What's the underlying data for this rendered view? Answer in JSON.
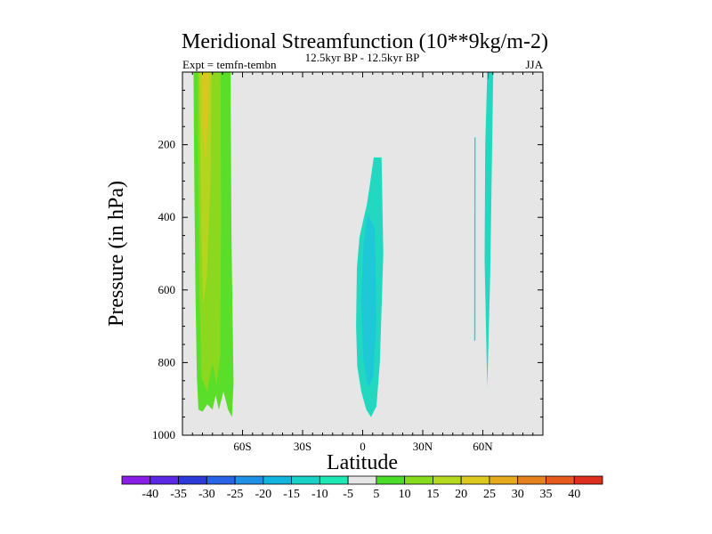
{
  "chart_data": {
    "type": "contour",
    "title": "Meridional Streamfunction (10**9kg/m-2)",
    "subtitle_center": "12.5kyr BP - 12.5kyr BP",
    "subtitle_left": "Expt = temfn-tembn",
    "subtitle_right": "JJA",
    "xlabel": "Latitude",
    "ylabel": "Pressure (in hPa)",
    "xlim": [
      -90,
      90
    ],
    "ylim": [
      1000,
      0
    ],
    "x_ticks": [
      {
        "value": -60,
        "label": "60S"
      },
      {
        "value": -30,
        "label": "30S"
      },
      {
        "value": 0,
        "label": "0"
      },
      {
        "value": 30,
        "label": "30N"
      },
      {
        "value": 60,
        "label": "60N"
      }
    ],
    "y_ticks": [
      {
        "value": 200,
        "label": "200"
      },
      {
        "value": 400,
        "label": "400"
      },
      {
        "value": 600,
        "label": "600"
      },
      {
        "value": 800,
        "label": "800"
      },
      {
        "value": 1000,
        "label": "1000"
      }
    ],
    "background_color": "#e6e6e6",
    "colorbar": {
      "levels": [
        -40,
        -35,
        -30,
        -25,
        -20,
        -15,
        -10,
        -5,
        5,
        10,
        15,
        20,
        25,
        30,
        35,
        40
      ],
      "labels": [
        "-40",
        "-35",
        "-30",
        "-25",
        "-20",
        "-15",
        "-10",
        "-5",
        "5",
        "10",
        "15",
        "20",
        "25",
        "30",
        "35",
        "40"
      ],
      "colors": [
        "#8a1ee6",
        "#5a28e6",
        "#2c3ad8",
        "#2a64e6",
        "#1e90e6",
        "#12b4e0",
        "#18d2c8",
        "#1ee8b4",
        "#e6e6e6",
        "#4ade2a",
        "#86dc1e",
        "#b4d81e",
        "#dcc81e",
        "#e6aa1e",
        "#e6821e",
        "#e65a1e",
        "#e02e1e"
      ]
    },
    "regions": [
      {
        "name": "southern-polar-positive-band",
        "level": "5 to 10",
        "color": "#5ade2a",
        "outline": [
          [
            -84.5,
            0
          ],
          [
            -66,
            0
          ],
          [
            -65.5,
            450
          ],
          [
            -64.5,
            860
          ],
          [
            -65.3,
            950
          ],
          [
            -67.2,
            930
          ],
          [
            -69.5,
            880
          ],
          [
            -71.8,
            930
          ],
          [
            -73.4,
            890
          ],
          [
            -75,
            930
          ],
          [
            -77.6,
            915
          ],
          [
            -79.9,
            935
          ],
          [
            -82,
            930
          ],
          [
            -82.8,
            840
          ],
          [
            -83.5,
            600
          ],
          [
            -84.1,
            300
          ]
        ]
      },
      {
        "name": "southern-polar-inner-band",
        "level": "10 to 15",
        "color": "#8cd81e",
        "outline": [
          [
            -82.4,
            0
          ],
          [
            -71,
            0
          ],
          [
            -70.7,
            400
          ],
          [
            -71.1,
            780
          ],
          [
            -73,
            860
          ],
          [
            -75,
            800
          ],
          [
            -77.7,
            880
          ],
          [
            -80.5,
            840
          ],
          [
            -81.5,
            600
          ],
          [
            -82,
            300
          ]
        ]
      },
      {
        "name": "southern-polar-core",
        "level": "15 to 20",
        "color": "#b4d41e",
        "outline": [
          [
            -81.6,
            0
          ],
          [
            -75.5,
            0
          ],
          [
            -76,
            300
          ],
          [
            -77.8,
            560
          ],
          [
            -79.6,
            640
          ],
          [
            -80.6,
            450
          ]
        ]
      },
      {
        "name": "southern-polar-core-max",
        "level": "20 to 25",
        "color": "#d6c81e",
        "outline": [
          [
            -80.5,
            0
          ],
          [
            -76.5,
            0
          ],
          [
            -77.2,
            120
          ],
          [
            -78.5,
            240
          ],
          [
            -79.9,
            160
          ]
        ]
      },
      {
        "name": "equatorial-negative-cell",
        "level": "-10 to -5",
        "color": "#22d8c0",
        "outline": [
          [
            5.5,
            235
          ],
          [
            9.4,
            235
          ],
          [
            10.3,
            500
          ],
          [
            8.6,
            800
          ],
          [
            6.9,
            920
          ],
          [
            4.2,
            950
          ],
          [
            1.8,
            930
          ],
          [
            -0.7,
            880
          ],
          [
            -2.7,
            810
          ],
          [
            -3.3,
            700
          ],
          [
            -2.9,
            540
          ],
          [
            -1.6,
            455
          ],
          [
            0,
            415
          ],
          [
            2.1,
            365
          ],
          [
            3.6,
            310
          ]
        ]
      },
      {
        "name": "equatorial-negative-core",
        "level": "-15 to -10",
        "color": "#1ec8d6",
        "outline": [
          [
            2.5,
            390
          ],
          [
            6,
            430
          ],
          [
            6.9,
            680
          ],
          [
            5.3,
            840
          ],
          [
            2.8,
            870
          ],
          [
            0.3,
            790
          ],
          [
            -0.8,
            630
          ],
          [
            0.5,
            470
          ]
        ]
      },
      {
        "name": "northern-negative-thin-band",
        "level": "-10 to -5",
        "color": "#22d8c0",
        "outline": [
          [
            62.2,
            0
          ],
          [
            65.2,
            0
          ],
          [
            63.7,
            560
          ],
          [
            62.2,
            870
          ],
          [
            60.9,
            520
          ],
          [
            61.2,
            200
          ]
        ]
      },
      {
        "name": "northern-negative-thin-band-2",
        "level": "-10 to -5",
        "color": "#22d8c0",
        "outline": [
          [
            55.8,
            180
          ],
          [
            56.4,
            180
          ],
          [
            56.3,
            740
          ],
          [
            55.7,
            740
          ]
        ]
      },
      {
        "name": "northern-negative-thin-top",
        "level": "-15 to -10",
        "color": "#0a9a8a",
        "outline": [
          [
            62.3,
            0
          ],
          [
            63.1,
            0
          ],
          [
            62.9,
            20
          ],
          [
            62.5,
            20
          ]
        ]
      }
    ]
  }
}
